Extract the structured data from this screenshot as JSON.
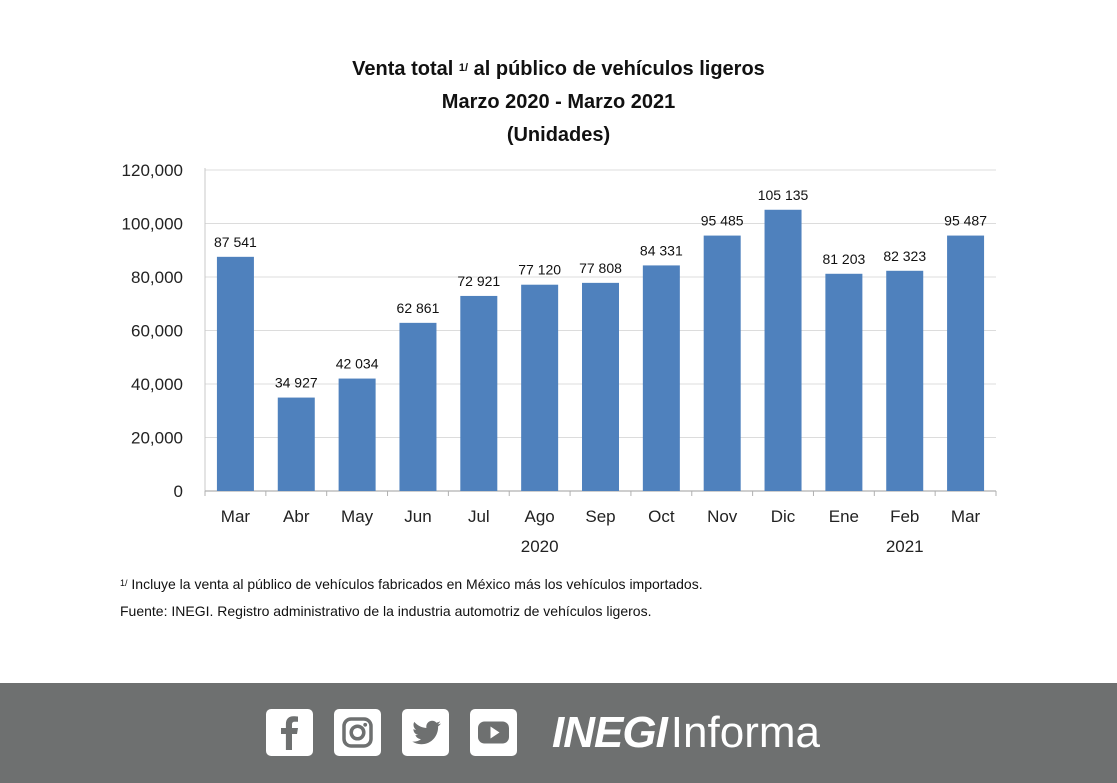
{
  "title": {
    "line1_pre": "Venta total ",
    "line1_sup": "1/",
    "line1_post": " al público de vehículos ligeros",
    "line2": "Marzo 2020 - Marzo 2021",
    "line3": "(Unidades)"
  },
  "chart_data": {
    "type": "bar",
    "categories": [
      "Mar",
      "Abr",
      "May",
      "Jun",
      "Jul",
      "Ago",
      "Sep",
      "Oct",
      "Nov",
      "Dic",
      "Ene",
      "Feb",
      "Mar"
    ],
    "values": [
      87541,
      34927,
      42034,
      62861,
      72921,
      77120,
      77808,
      84331,
      95485,
      105135,
      81203,
      82323,
      95487
    ],
    "value_labels": [
      "87 541",
      "34 927",
      "42 034",
      "62 861",
      "72 921",
      "77 120",
      "77 808",
      "84 331",
      "95 485",
      "105 135",
      "81 203",
      "82 323",
      "95 487"
    ],
    "year_labels": [
      {
        "label": "2020",
        "category_index": 5
      },
      {
        "label": "2021",
        "category_index": 11
      }
    ],
    "ylim": [
      0,
      120000
    ],
    "yticks": [
      0,
      20000,
      40000,
      60000,
      80000,
      100000,
      120000
    ],
    "ytick_labels": [
      "0",
      "20,000",
      "40,000",
      "60,000",
      "80,000",
      "100,000",
      "120,000"
    ],
    "grid": true,
    "bar_color": "#4f81bd"
  },
  "notes": {
    "footnote_sup": "1/",
    "footnote": " Incluye la venta al público de vehículos fabricados en México más los vehículos importados.",
    "source": "Fuente: INEGI. Registro administrativo de la industria automotriz de vehículos ligeros."
  },
  "footer": {
    "social_icons": [
      "facebook-icon",
      "instagram-icon",
      "twitter-icon",
      "youtube-icon"
    ],
    "brand_bold": "INEGI",
    "brand_thin": "Informa",
    "bar_color": "#6e7070"
  }
}
